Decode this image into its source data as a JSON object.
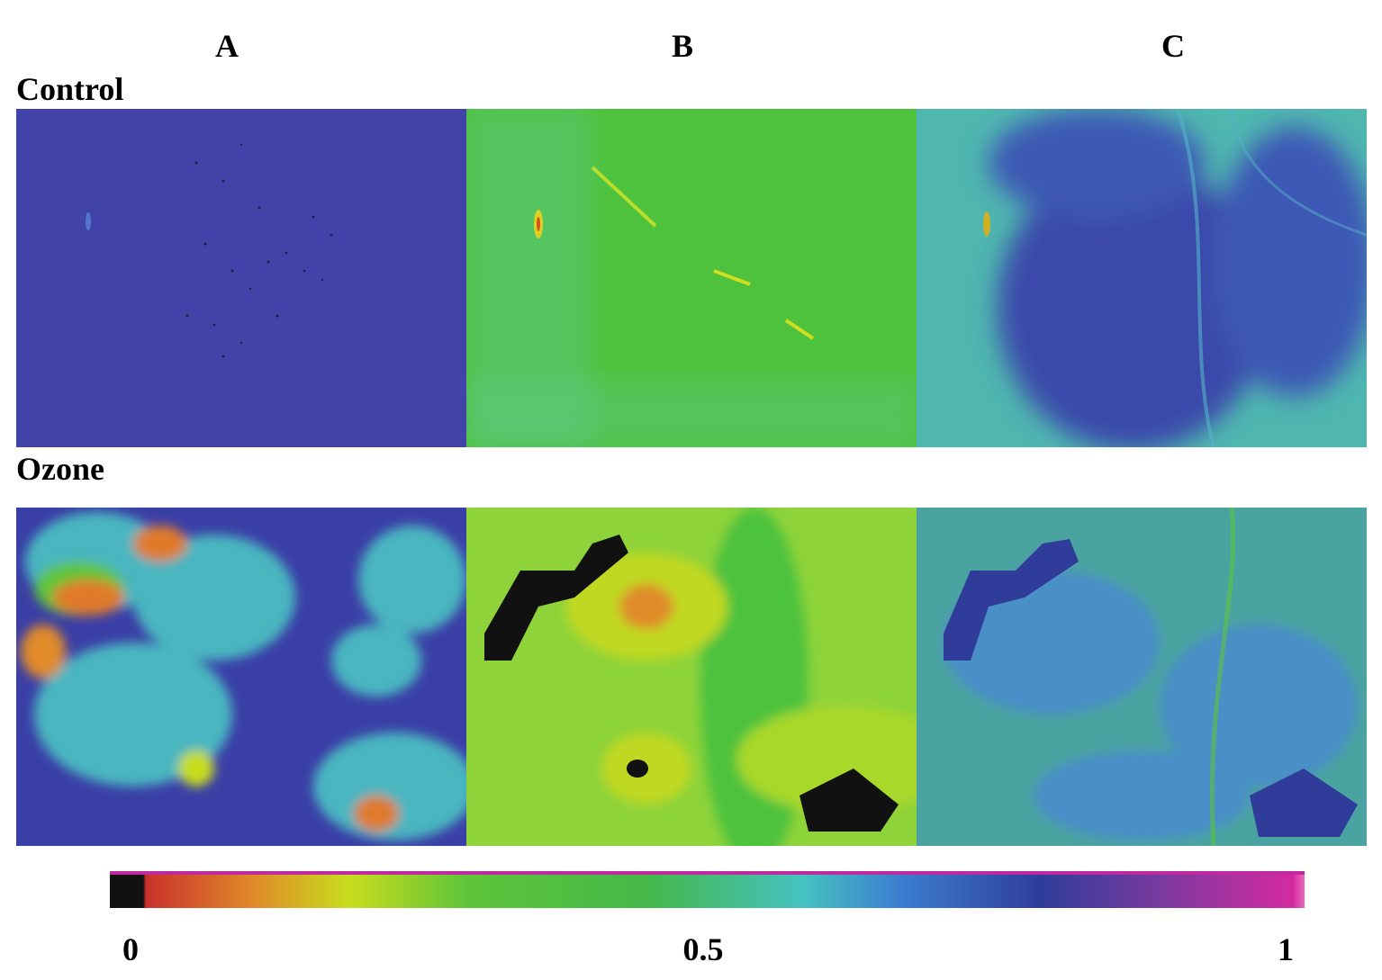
{
  "columns": [
    "A",
    "B",
    "C"
  ],
  "rows": [
    "Control",
    "Ozone"
  ],
  "panels": {
    "control_a": {
      "base": "#3f46a8"
    },
    "control_b": {
      "base": "#4ec23c"
    },
    "control_c": {
      "base": "#3c55b0"
    },
    "ozone_a": {
      "base": "#3a3fa6"
    },
    "ozone_b": {
      "base": "#6fcf3a"
    },
    "ozone_c": {
      "base": "#4aa3a0"
    }
  },
  "colorbar": {
    "ticks": [
      "0",
      "0.5",
      "1"
    ],
    "stops": [
      "#111111",
      "#c9302c",
      "#e08a2a",
      "#c8dd1e",
      "#5ec43a",
      "#45b84a",
      "#45c2c0",
      "#3c7fd0",
      "#2f3c9a",
      "#7a3aa0",
      "#d42aa0"
    ]
  }
}
